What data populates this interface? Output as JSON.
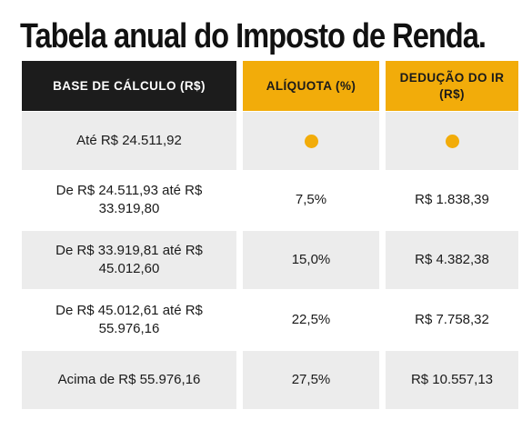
{
  "title": "Tabela anual do Imposto de Renda.",
  "accent_color": "#f2ac0a",
  "header_dark_color": "#1c1c1c",
  "columns": [
    "BASE DE CÁLCULO (R$)",
    "ALÍQUOTA (%)",
    "DEDUÇÃO DO IR (R$)"
  ],
  "rows": [
    {
      "base_line1": "Até R$ 24.511,92",
      "base_line2": "",
      "rate_icon": "dot-icon",
      "deduction_icon": "dot-icon"
    },
    {
      "base_line1": "De R$ 24.511,93 até R$",
      "base_line2": "33.919,80",
      "rate": "7,5%",
      "deduction": "R$ 1.838,39"
    },
    {
      "base_line1": "De R$ 33.919,81 até R$",
      "base_line2": "45.012,60",
      "rate": "15,0%",
      "deduction": "R$ 4.382,38"
    },
    {
      "base_line1": "De R$ 45.012,61 até R$",
      "base_line2": "55.976,16",
      "rate": "22,5%",
      "deduction": "R$ 7.758,32"
    },
    {
      "base_line1": "Acima de R$ 55.976,16",
      "base_line2": "",
      "rate": "27,5%",
      "deduction": "R$ 10.557,13"
    }
  ]
}
